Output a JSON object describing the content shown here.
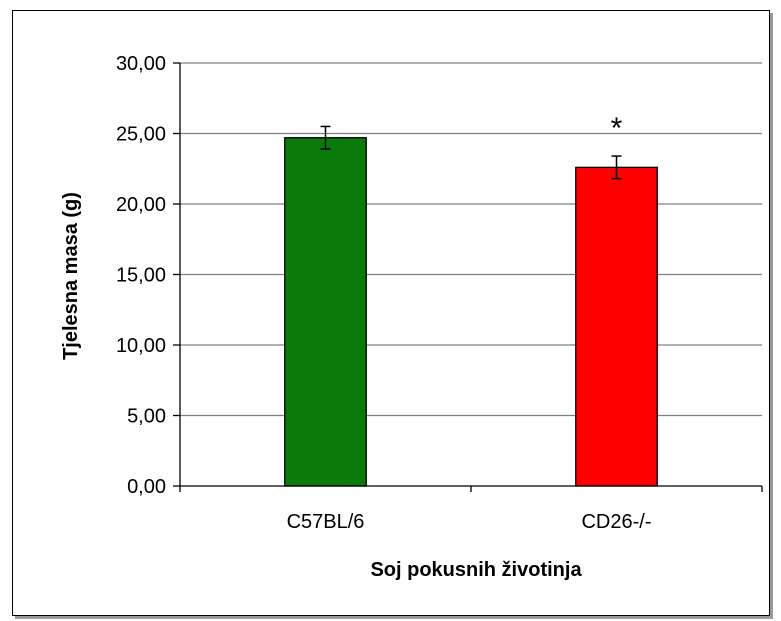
{
  "chart_data": {
    "type": "bar",
    "categories": [
      "C57BL/6",
      "CD26-/-"
    ],
    "values": [
      24.7,
      22.6
    ],
    "errors": [
      0.8,
      0.8
    ],
    "colors": [
      "#0a7a0a",
      "#ff0000"
    ],
    "annotations": [
      {
        "category": "CD26-/-",
        "text": "*"
      }
    ],
    "title": "",
    "xlabel": "Soj pokusnih životinja",
    "ylabel": "Tjelesna masa (g)",
    "ylim": [
      0,
      30
    ],
    "yticks": [
      "0,00",
      "5,00",
      "10,00",
      "15,00",
      "20,00",
      "25,00",
      "30,00"
    ],
    "grid": true,
    "legend": "none"
  }
}
